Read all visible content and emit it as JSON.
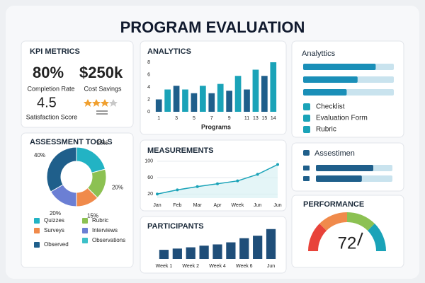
{
  "title": "PROGRAM EVALUATION",
  "kpi": {
    "title": "KPI METRICS",
    "items": [
      {
        "value": "80%",
        "label": "Completion Rate"
      },
      {
        "value": "$250k",
        "label": "Cost Savings"
      },
      {
        "value": "4.5",
        "label": "Satisfaction Score"
      }
    ]
  },
  "chart_data": [
    {
      "type": "bar",
      "title": "ANALYTICS",
      "x_label": "Programs",
      "categories": [
        "1",
        null,
        "3",
        null,
        "5",
        null,
        "7",
        null,
        "9",
        null,
        "11",
        "13",
        "15",
        "14"
      ],
      "values": [
        2,
        3.6,
        4.2,
        3.6,
        3,
        4.2,
        3,
        4.5,
        3.4,
        5.8,
        3.6,
        6.8,
        5.8,
        8
      ],
      "colors": [
        "#1f5f8b",
        "#1aa3b8"
      ],
      "ylim": [
        0,
        8
      ],
      "yticks": [
        0,
        2,
        4,
        6,
        8
      ]
    },
    {
      "type": "pie",
      "title": "ASSESSMENT TOOLS",
      "categories": [
        "Quizzes",
        "Rubric",
        "Surveys",
        "Interviews",
        "Observed"
      ],
      "values": [
        25,
        20,
        15,
        20,
        40
      ],
      "value_labels": [
        "25%",
        "20%",
        "15%",
        "20%",
        "40%"
      ],
      "colors": [
        "#22b3c4",
        "#8cc152",
        "#f08a4b",
        "#6b7fd4",
        "#1f5f8b"
      ],
      "extra_legend": [
        {
          "name": "Observations",
          "color": "#3cc0c8"
        }
      ]
    },
    {
      "type": "line",
      "title": "MEASUREMENTS",
      "categories": [
        "Jan",
        "Feb",
        "Mar",
        "Apr",
        "Week",
        "Jun",
        "Jun"
      ],
      "values": [
        20,
        30,
        38,
        45,
        52,
        68,
        92
      ],
      "color": "#1aa3b8",
      "ylim": [
        10,
        105
      ],
      "yticks": [
        20,
        60,
        100
      ]
    },
    {
      "type": "bar",
      "title": "PARTICIPANTS",
      "categories": [
        "Week 1",
        null,
        "Week 2",
        null,
        "Week 4",
        null,
        "Week 6",
        null,
        "Jun"
      ],
      "values": [
        22,
        25,
        28,
        32,
        35,
        40,
        50,
        56,
        72
      ],
      "colors": [
        "#1f4e79"
      ],
      "ylim": [
        0,
        75
      ]
    }
  ],
  "progress": {
    "title": "Analyttics",
    "values": [
      80,
      60,
      48
    ],
    "max": 100,
    "legend": [
      "Checklist",
      "Evaluation Form",
      "Rubric"
    ]
  },
  "assessment": {
    "title": "Assestimen",
    "values": [
      75,
      60
    ],
    "max": 100
  },
  "performance": {
    "title": "PERFORMANCE",
    "value": 72,
    "max": 100
  }
}
